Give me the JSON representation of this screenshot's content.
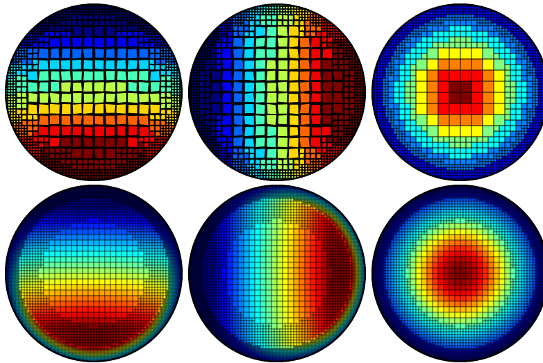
{
  "figure": {
    "panels": [
      {
        "id": "top-left",
        "mesh": "voronoi",
        "field": "vertical-gradient",
        "flip": false
      },
      {
        "id": "top-middle",
        "mesh": "voronoi",
        "field": "horizontal-gradient",
        "flip": false
      },
      {
        "id": "top-right",
        "mesh": "quadtree-coarse",
        "field": "radial-peak",
        "flip": false
      },
      {
        "id": "bottom-left",
        "mesh": "quadtree-fine",
        "field": "vertical-gradient",
        "flip": false
      },
      {
        "id": "bottom-middle",
        "mesh": "quadtree-fine",
        "field": "horizontal-gradient",
        "flip": false
      },
      {
        "id": "bottom-right",
        "mesh": "quadtree-fine",
        "field": "radial-peak",
        "flip": false
      }
    ],
    "colormap": "jet",
    "mesh_line_color": "#000000",
    "background_color": "#ffffff"
  }
}
